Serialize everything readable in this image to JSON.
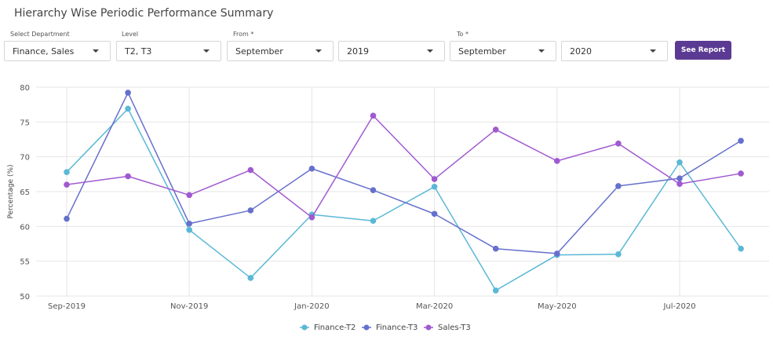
{
  "page": {
    "title": "Hierarchy Wise Periodic Performance Summary"
  },
  "filters": {
    "department": {
      "label": "Select Department",
      "value": "Finance, Sales"
    },
    "level": {
      "label": "Level",
      "value": "T2, T3"
    },
    "from": {
      "label": "From *",
      "month": "September",
      "year": "2019"
    },
    "to": {
      "label": "To *",
      "month": "September",
      "year": "2020"
    },
    "see_report_label": "See Report"
  },
  "icons": {
    "dropdown": "caret-down-icon",
    "legend_marker": "circle-marker-icon"
  },
  "chart_data": {
    "type": "line",
    "title": "",
    "xlabel": "",
    "ylabel": "Percentage (%)",
    "ylim": [
      50,
      80
    ],
    "yticks": [
      50,
      55,
      60,
      65,
      70,
      75,
      80
    ],
    "categories": [
      "Sep-2019",
      "Oct-2019",
      "Nov-2019",
      "Dec-2019",
      "Jan-2020",
      "Feb-2020",
      "Mar-2020",
      "Apr-2020",
      "May-2020",
      "Jun-2020",
      "Jul-2020",
      "Aug-2020"
    ],
    "xtick_labels": [
      "Sep-2019",
      "Nov-2019",
      "Jan-2020",
      "Mar-2020",
      "May-2020",
      "Jul-2020"
    ],
    "grid": true,
    "legend_position": "bottom",
    "series": [
      {
        "name": "Finance-T2",
        "color": "#5bb8d6",
        "values": [
          67.8,
          76.9,
          59.5,
          52.6,
          61.7,
          60.8,
          65.7,
          50.8,
          55.9,
          56.0,
          69.2,
          56.8
        ]
      },
      {
        "name": "Finance-T3",
        "color": "#6670cc",
        "values": [
          61.1,
          79.2,
          60.4,
          62.3,
          68.3,
          65.2,
          61.8,
          56.8,
          56.1,
          65.8,
          66.9,
          72.3
        ]
      },
      {
        "name": "Sales-T3",
        "color": "#a05ad0",
        "values": [
          66.0,
          67.2,
          64.5,
          68.1,
          61.3,
          75.9,
          66.8,
          73.9,
          69.4,
          71.9,
          66.1,
          67.6
        ]
      }
    ]
  }
}
